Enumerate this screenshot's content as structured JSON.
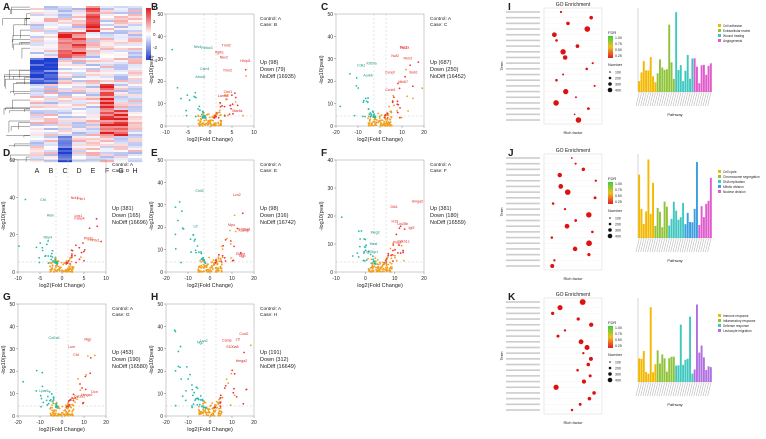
{
  "panel_labels": [
    "A",
    "B",
    "C",
    "D",
    "E",
    "F",
    "G",
    "H",
    "I",
    "J",
    "K"
  ],
  "heatmap": {
    "columns": [
      "A",
      "B",
      "C",
      "D",
      "E",
      "F",
      "G",
      "H"
    ],
    "legend_ticks": [
      "4",
      "2",
      "0",
      "-2",
      "-4"
    ],
    "colors": {
      "high": "#e31a1c",
      "mid": "#ffffff",
      "low": "#1f3fd0"
    }
  },
  "volcano_common": {
    "xlabel": "log2(Fold Change)",
    "ylabel": "-log10(pval)",
    "colors": {
      "up": "#ee3333",
      "down": "#22bba8",
      "nodiff": "#f0a020"
    }
  },
  "volcanos": [
    {
      "id": "B",
      "control": "Control: A",
      "case": "Case: B",
      "up": "Up (98)",
      "down": "Down (79)",
      "nodiff": "NoDiff (16935)",
      "xticks": [
        "-10",
        "-5",
        "0",
        "5",
        "10"
      ],
      "yticks": [
        "0",
        "10",
        "20",
        "30",
        "40",
        "50"
      ],
      "genes": [
        "Mar8s",
        "Ifgtb1",
        "Ntv4",
        "Tnnt2",
        "Ctnt1",
        "Csm4",
        "Tmn2",
        "Nkx2",
        "Amot1",
        "Lama2",
        "Hhipl1",
        "Rbfox3"
      ]
    },
    {
      "id": "C",
      "control": "Control: A",
      "case": "Case: C",
      "up": "Up (687)",
      "down": "Down (250)",
      "nodiff": "NoDiff (16452)",
      "xticks": [
        "-20",
        "-10",
        "0",
        "10",
        "20"
      ],
      "yticks": [
        "0",
        "10",
        "20",
        "30",
        "40",
        "50"
      ],
      "genes": [
        "Rrm2",
        "Nuf2",
        "Kif20a",
        "Top2a",
        "Ccnb1",
        "Cdk1",
        "Mki67",
        "Cenpf",
        "Aurkb",
        "Bub1",
        "Plk1"
      ]
    },
    {
      "id": "D",
      "control": "Control: A",
      "case": "Case: D",
      "up": "Up (381)",
      "down": "Down (165)",
      "nodiff": "NoDiff (16696)",
      "xticks": [
        "-10",
        "-5",
        "0",
        "5",
        "10"
      ],
      "yticks": [
        "0",
        "20",
        "40",
        "60"
      ],
      "genes": [
        "Lbx1",
        "Pitx1",
        "Cfd",
        "Fabp4",
        "Nnt1",
        "Rbp4",
        "Plin1",
        "Ptgds",
        "Retn"
      ]
    },
    {
      "id": "E",
      "control": "Control: A",
      "case": "Case: E",
      "up": "Up (98)",
      "down": "Down (316)",
      "nodiff": "NoDiff (16742)",
      "xticks": [
        "-20",
        "-10",
        "0",
        "10",
        "20"
      ],
      "yticks": [
        "0",
        "10",
        "20",
        "30",
        "40",
        "50"
      ],
      "genes": [
        "S100a8",
        "Ngp",
        "Ltf",
        "Camp",
        "Lcn2",
        "Chil3",
        "Mpo",
        "Elane"
      ]
    },
    {
      "id": "F",
      "control": "Control: A",
      "case": "Case: F",
      "up": "Up (381)",
      "down": "Down (180)",
      "nodiff": "NoDiff (16559)",
      "xticks": [
        "-10",
        "0",
        "10",
        "20"
      ],
      "yticks": [
        "0",
        "10",
        "20",
        "30",
        "40"
      ],
      "genes": [
        "Hmga2",
        "Lin28b",
        "Igf2bp1",
        "H19",
        "Dlk1",
        "Meg3",
        "Peg3",
        "Igf2",
        "Mest",
        "Cdkn1c"
      ]
    },
    {
      "id": "G",
      "control": "Control: A",
      "case": "Case: G",
      "up": "Up (453)",
      "down": "Down (190)",
      "nodiff": "NoDiff (16580)",
      "xticks": [
        "-20",
        "-10",
        "0",
        "10",
        "20"
      ],
      "yticks": [
        "0",
        "10",
        "20",
        "30",
        "40",
        "50"
      ],
      "genes": [
        "Hmga2",
        "Cfd",
        "Lpar6",
        "Lum",
        "Dcn",
        "Col1a1",
        "Col3a1",
        "Mgp"
      ]
    },
    {
      "id": "H",
      "control": "Control: A",
      "case": "Case: H",
      "up": "Up (191)",
      "down": "Down (312)",
      "nodiff": "NoDiff (16649)",
      "xticks": [
        "-20",
        "-10",
        "0",
        "10",
        "20"
      ],
      "yticks": [
        "0",
        "10",
        "20",
        "30",
        "40",
        "50"
      ],
      "genes": [
        "S100a8",
        "Hmga2",
        "Ngp",
        "Camp",
        "Ltf",
        "Lcn2",
        "Cxcl2"
      ]
    }
  ],
  "go": [
    {
      "id": "I",
      "title": "GO Enrichment",
      "ylabel": "Term",
      "xlabel": "Rich factor",
      "fdr_label": "FDR",
      "number_label": "Number",
      "bar_xlabel": "Pathway",
      "fdr_ticks": [
        "1.00",
        "0.75",
        "0.50",
        "0.25"
      ],
      "number_ticks": [
        "100",
        "200",
        "300",
        "400"
      ],
      "legend": [
        "Cell adhesion",
        "Extracellular matrix",
        "Wound healing",
        "Angiogenesis"
      ]
    },
    {
      "id": "J",
      "title": "GO Enrichment",
      "ylabel": "Term",
      "xlabel": "Rich factor",
      "fdr_label": "FDR",
      "number_label": "Number",
      "bar_xlabel": "Pathway",
      "fdr_ticks": [
        "1.00",
        "0.75",
        "0.50",
        "0.25"
      ],
      "number_ticks": [
        "100",
        "200",
        "300",
        "400"
      ],
      "legend": [
        "Cell cycle",
        "Chromosome segregation",
        "DNA replication",
        "Mitotic division",
        "Nuclear division"
      ]
    },
    {
      "id": "K",
      "title": "GO Enrichment",
      "ylabel": "Term",
      "xlabel": "Rich factor",
      "fdr_label": "FDR",
      "number_label": "Number",
      "bar_xlabel": "Pathway",
      "fdr_ticks": [
        "1.00",
        "0.75",
        "0.50",
        "0.25"
      ],
      "number_ticks": [
        "100",
        "200",
        "300",
        "400"
      ],
      "legend": [
        "Immune response",
        "Inflammatory response",
        "Defense response",
        "Leukocyte migration"
      ]
    }
  ]
}
